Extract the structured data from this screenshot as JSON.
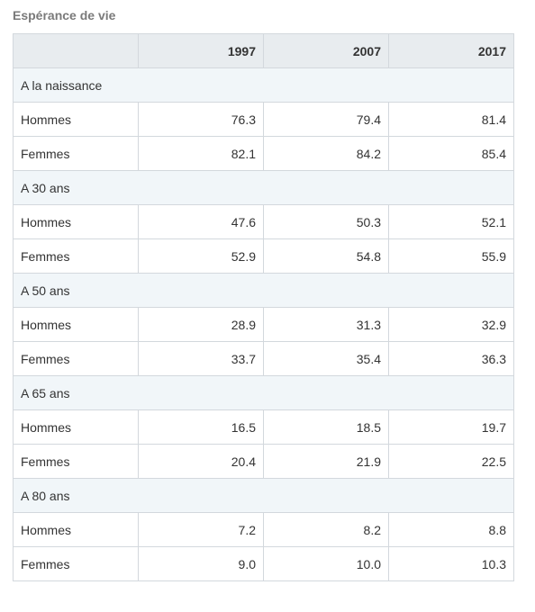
{
  "caption": "Espérance de vie",
  "table": {
    "columns": [
      "",
      "1997",
      "2007",
      "2017"
    ],
    "groups": [
      {
        "label": "A la naissance",
        "rows": [
          {
            "label": "Hommes",
            "values": [
              "76.3",
              "79.4",
              "81.4"
            ]
          },
          {
            "label": "Femmes",
            "values": [
              "82.1",
              "84.2",
              "85.4"
            ]
          }
        ]
      },
      {
        "label": "A 30 ans",
        "rows": [
          {
            "label": "Hommes",
            "values": [
              "47.6",
              "50.3",
              "52.1"
            ]
          },
          {
            "label": "Femmes",
            "values": [
              "52.9",
              "54.8",
              "55.9"
            ]
          }
        ]
      },
      {
        "label": "A 50 ans",
        "rows": [
          {
            "label": "Hommes",
            "values": [
              "28.9",
              "31.3",
              "32.9"
            ]
          },
          {
            "label": "Femmes",
            "values": [
              "33.7",
              "35.4",
              "36.3"
            ]
          }
        ]
      },
      {
        "label": "A 65 ans",
        "rows": [
          {
            "label": "Hommes",
            "values": [
              "16.5",
              "18.5",
              "19.7"
            ]
          },
          {
            "label": "Femmes",
            "values": [
              "20.4",
              "21.9",
              "22.5"
            ]
          }
        ]
      },
      {
        "label": "A 80 ans",
        "rows": [
          {
            "label": "Hommes",
            "values": [
              "7.2",
              "8.2",
              "8.8"
            ]
          },
          {
            "label": "Femmes",
            "values": [
              "9.0",
              "10.0",
              "10.3"
            ]
          }
        ]
      }
    ]
  },
  "colors": {
    "header_bg": "#e8ecef",
    "group_bg": "#f1f6f9",
    "border": "#d3d8dd",
    "caption": "#7a7a7a",
    "text": "#333333"
  }
}
